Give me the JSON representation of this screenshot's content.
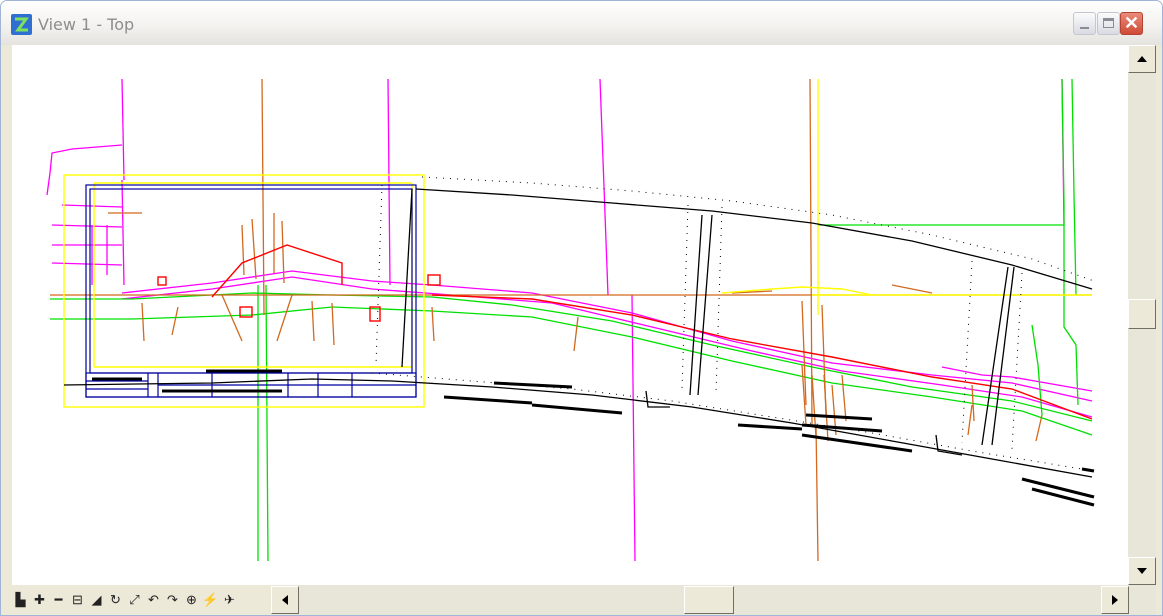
{
  "window": {
    "title": "View 1 - Top",
    "title_icon": "microstation-view-icon",
    "controls": [
      "minimize-icon",
      "maximize-icon",
      "close-icon"
    ]
  },
  "view_controls": [
    {
      "name": "view-attributes-icon",
      "glyph": "▙"
    },
    {
      "name": "zoom-in-icon",
      "glyph": "✚"
    },
    {
      "name": "zoom-out-icon",
      "glyph": "━"
    },
    {
      "name": "window-area-icon",
      "glyph": "⊟"
    },
    {
      "name": "fit-view-icon",
      "glyph": "◢"
    },
    {
      "name": "rotate-view-icon",
      "glyph": "↻"
    },
    {
      "name": "pan-view-icon",
      "glyph": "⤢"
    },
    {
      "name": "view-previous-icon",
      "glyph": "↶"
    },
    {
      "name": "view-next-icon",
      "glyph": "↷"
    },
    {
      "name": "view-rotation-icon",
      "glyph": "⊕"
    },
    {
      "name": "toggle-display-icon",
      "glyph": "⚡"
    },
    {
      "name": "camera-icon",
      "glyph": "✈"
    }
  ],
  "colors": {
    "alignment": "#ff00ff",
    "storm": "#d2691e",
    "water": "#00e000",
    "sheet_border": "#ffff00",
    "title_block": "#0000a0",
    "centerline": "#ff0000"
  }
}
